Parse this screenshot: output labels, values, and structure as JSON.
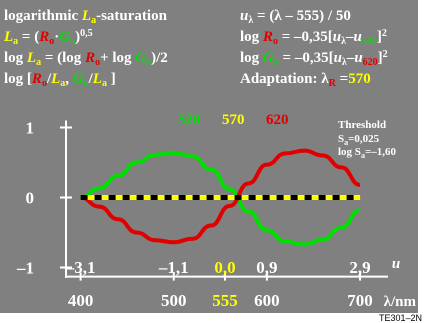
{
  "colors": {
    "background": "#808080",
    "text": "#ffffff",
    "red": "#e00000",
    "green": "#00e000",
    "yellow": "#ffff00",
    "black": "#000000"
  },
  "header": {
    "left": [
      {
        "segments": [
          {
            "t": "logarithmic ",
            "c": "text"
          },
          {
            "t": "L",
            "c": "yellow",
            "i": true
          },
          {
            "t": "a",
            "c": "yellow",
            "sub": true
          },
          {
            "t": "-saturation",
            "c": "text"
          }
        ]
      },
      {
        "segments": [
          {
            "t": "L",
            "c": "yellow",
            "i": true
          },
          {
            "t": "a",
            "c": "yellow",
            "sub": true
          },
          {
            "t": " = (",
            "c": "text"
          },
          {
            "t": "R",
            "c": "red",
            "i": true
          },
          {
            "t": "o",
            "c": "red",
            "sub": true
          },
          {
            "t": "·",
            "c": "text"
          },
          {
            "t": "G",
            "c": "green",
            "i": true
          },
          {
            "t": "o",
            "c": "green",
            "sub": true
          },
          {
            "t": ")",
            "c": "text"
          },
          {
            "t": "0,5",
            "c": "text",
            "sup": true
          }
        ]
      },
      {
        "segments": [
          {
            "t": "log ",
            "c": "text"
          },
          {
            "t": "L",
            "c": "yellow",
            "i": true
          },
          {
            "t": "a",
            "c": "yellow",
            "sub": true
          },
          {
            "t": " = (log ",
            "c": "text"
          },
          {
            "t": "R",
            "c": "red",
            "i": true
          },
          {
            "t": "o",
            "c": "red",
            "sub": true
          },
          {
            "t": "+ log ",
            "c": "text"
          },
          {
            "t": "G",
            "c": "green",
            "i": true
          },
          {
            "t": "o",
            "c": "green",
            "sub": true
          },
          {
            "t": ")/2",
            "c": "text"
          }
        ]
      },
      {
        "segments": [
          {
            "t": "log [",
            "c": "text"
          },
          {
            "t": "R",
            "c": "red",
            "i": true
          },
          {
            "t": "o",
            "c": "red",
            "sub": true
          },
          {
            "t": "/",
            "c": "text"
          },
          {
            "t": "L",
            "c": "yellow",
            "i": true
          },
          {
            "t": "a",
            "c": "yellow",
            "sub": true
          },
          {
            "t": ", ",
            "c": "text"
          },
          {
            "t": "G",
            "c": "green",
            "i": true
          },
          {
            "t": "o",
            "c": "green",
            "sub": true
          },
          {
            "t": "/",
            "c": "text"
          },
          {
            "t": "L",
            "c": "yellow",
            "i": true
          },
          {
            "t": "a",
            "c": "yellow",
            "sub": true
          },
          {
            "t": " ]",
            "c": "text"
          }
        ]
      }
    ],
    "right": [
      {
        "segments": [
          {
            "t": "u",
            "c": "text",
            "i": true
          },
          {
            "t": "λ",
            "c": "text",
            "sub": true
          },
          {
            "t": " = (λ – 555) / 50",
            "c": "text"
          }
        ]
      },
      {
        "segments": [
          {
            "t": "log ",
            "c": "text"
          },
          {
            "t": "R",
            "c": "red",
            "i": true
          },
          {
            "t": "o",
            "c": "red",
            "sub": true
          },
          {
            "t": " = –0,35[",
            "c": "text"
          },
          {
            "t": "u",
            "c": "text",
            "i": true
          },
          {
            "t": "λ",
            "c": "text",
            "sub": true
          },
          {
            "t": "–",
            "c": "text"
          },
          {
            "t": "u",
            "c": "text",
            "i": true
          },
          {
            "t": "520",
            "c": "green",
            "sub": true
          },
          {
            "t": "]",
            "c": "text"
          },
          {
            "t": "2",
            "c": "text",
            "sup": true
          }
        ]
      },
      {
        "segments": [
          {
            "t": "log ",
            "c": "text"
          },
          {
            "t": "G",
            "c": "green",
            "i": true
          },
          {
            "t": "o",
            "c": "green",
            "sub": true
          },
          {
            "t": " = –0,35[",
            "c": "text"
          },
          {
            "t": "u",
            "c": "text",
            "i": true
          },
          {
            "t": "λ",
            "c": "text",
            "sub": true
          },
          {
            "t": "–",
            "c": "text"
          },
          {
            "t": "u",
            "c": "text",
            "i": true
          },
          {
            "t": "620",
            "c": "red",
            "sub": true
          },
          {
            "t": "]",
            "c": "text"
          },
          {
            "t": "2",
            "c": "text",
            "sup": true
          }
        ]
      },
      {
        "segments": [
          {
            "t": "Adaptation: λ",
            "c": "text"
          },
          {
            "t": "R",
            "c": "red",
            "sub": true
          },
          {
            "t": " =",
            "c": "text"
          },
          {
            "t": "570",
            "c": "yellow"
          }
        ]
      }
    ]
  },
  "legend": {
    "wavelengths": [
      {
        "label": "520",
        "c": "green"
      },
      {
        "label": "570",
        "c": "yellow"
      },
      {
        "label": "620",
        "c": "red"
      }
    ]
  },
  "threshold": {
    "title": "Threshold",
    "line1": {
      "base": "S",
      "sub": "a",
      "rest": "=0,025"
    },
    "line2": {
      "base": "log S",
      "sub": "a",
      "rest": "=–1,60"
    }
  },
  "chart_data": {
    "type": "line",
    "x_axis_unit": "λ/nm",
    "x_ticks": [
      {
        "label": "400",
        "value": 400,
        "c": "text"
      },
      {
        "label": "500",
        "value": 500,
        "c": "text"
      },
      {
        "label": "555",
        "value": 555,
        "c": "yellow"
      },
      {
        "label": "600",
        "value": 600,
        "c": "text"
      },
      {
        "label": "700",
        "value": 700,
        "c": "text"
      }
    ],
    "u_axis_label": "u",
    "u_ticks": [
      {
        "label": "–3,1",
        "value": 400,
        "c": "text"
      },
      {
        "label": "–1,1",
        "value": 500,
        "c": "text"
      },
      {
        "label": "0,0",
        "value": 555,
        "c": "yellow"
      },
      {
        "label": "0,9",
        "value": 600,
        "c": "text"
      },
      {
        "label": "2,9",
        "value": 700,
        "c": "text"
      }
    ],
    "y_ticks": [
      {
        "label": "1",
        "value": 1
      },
      {
        "label": "0",
        "value": 0
      },
      {
        "label": "–1",
        "value": -1
      }
    ],
    "xlim": [
      380,
      730
    ],
    "ylim": [
      -1.25,
      1.25
    ],
    "series": [
      {
        "color": "green",
        "x": [
          400,
          420,
          440,
          460,
          480,
          500,
          520,
          540,
          560,
          580,
          600,
          620,
          640,
          660,
          680,
          700
        ],
        "y": [
          0.0,
          0.13,
          0.31,
          0.5,
          0.61,
          0.64,
          0.59,
          0.4,
          0.12,
          -0.2,
          -0.47,
          -0.63,
          -0.67,
          -0.6,
          -0.43,
          -0.18
        ]
      },
      {
        "color": "red",
        "x": [
          400,
          420,
          440,
          460,
          480,
          500,
          520,
          540,
          560,
          580,
          600,
          620,
          640,
          660,
          680,
          700
        ],
        "y": [
          0.0,
          -0.13,
          -0.31,
          -0.5,
          -0.61,
          -0.64,
          -0.59,
          -0.4,
          -0.12,
          0.2,
          0.47,
          0.63,
          0.67,
          0.6,
          0.43,
          0.18
        ]
      },
      {
        "color": "yellow-black",
        "x": [
          400,
          700
        ],
        "y": [
          0,
          0
        ]
      }
    ]
  },
  "corner_code": "TE301–2N"
}
